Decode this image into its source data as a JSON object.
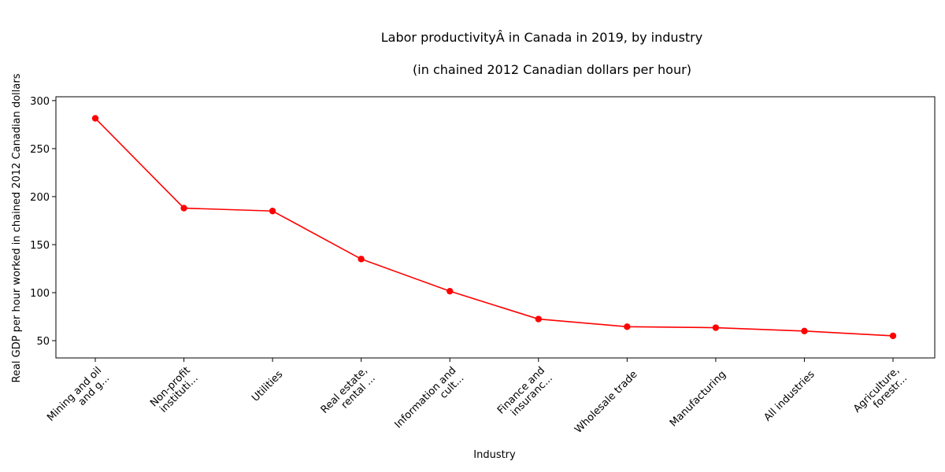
{
  "chart_data": {
    "type": "line",
    "title_line1": "Labor productivityÂ in Canada in 2019, by industry",
    "title_line2": "(in chained 2012 Canadian dollars per hour)",
    "xlabel": "Industry",
    "ylabel": "Real GDP per hour worked in chained 2012 Canadian dollars",
    "categories": [
      [
        "Mining and oil",
        "and g..."
      ],
      [
        "Non-profit",
        "instituti..."
      ],
      [
        "Utilities"
      ],
      [
        "Real estate,",
        "rental ..."
      ],
      [
        "Information and",
        "cult..."
      ],
      [
        "Finance and",
        "insuranc..."
      ],
      [
        "Wholesale trade"
      ],
      [
        "Manufacturing"
      ],
      [
        "All industries"
      ],
      [
        "Agriculture,",
        "forestr..."
      ]
    ],
    "values": [
      281.5,
      188.0,
      185.0,
      135.0,
      101.5,
      72.5,
      64.5,
      63.5,
      60.0,
      55.0
    ],
    "ylim": [
      32,
      304
    ],
    "yticks": [
      50,
      100,
      150,
      200,
      250,
      300
    ],
    "line_color": "#ff0000",
    "marker_color": "#ff0000"
  }
}
